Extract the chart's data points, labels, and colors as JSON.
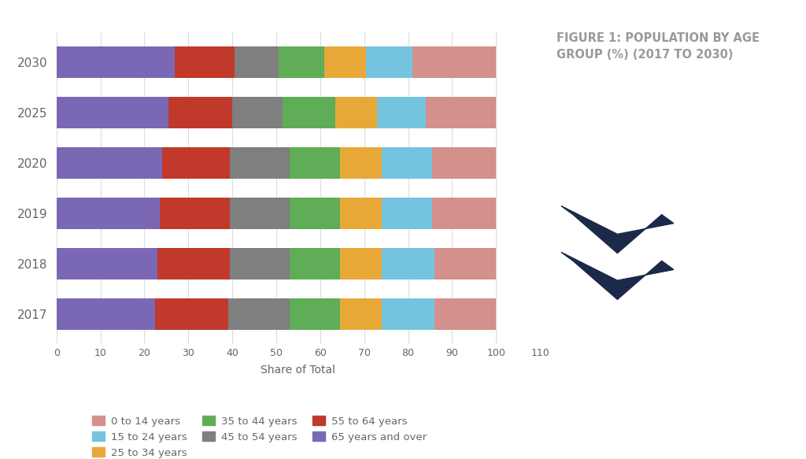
{
  "years": [
    "2030",
    "2025",
    "2020",
    "2019",
    "2018",
    "2017"
  ],
  "segments": [
    {
      "label": "65 years and over",
      "color": "#7B68B5",
      "values": [
        27.0,
        25.5,
        24.0,
        23.5,
        23.0,
        22.5
      ]
    },
    {
      "label": "55 to 64 years",
      "color": "#C0392B",
      "values": [
        13.5,
        14.5,
        15.5,
        16.0,
        16.5,
        16.5
      ]
    },
    {
      "label": "45 to 54 years",
      "color": "#7F7F7F",
      "values": [
        10.0,
        11.5,
        13.5,
        13.5,
        13.5,
        14.0
      ]
    },
    {
      "label": "35 to 44 years",
      "color": "#5FAD56",
      "values": [
        10.5,
        12.0,
        11.5,
        11.5,
        11.5,
        11.5
      ]
    },
    {
      "label": "25 to 34 years",
      "color": "#E8A838",
      "values": [
        9.5,
        9.5,
        9.5,
        9.5,
        9.5,
        9.5
      ]
    },
    {
      "label": "15 to 24 years",
      "color": "#74C4E0",
      "values": [
        10.5,
        11.0,
        11.5,
        11.5,
        12.0,
        12.0
      ]
    },
    {
      "label": "0 to 14 years",
      "color": "#D4908A",
      "values": [
        19.0,
        16.0,
        14.5,
        14.5,
        14.0,
        14.0
      ]
    }
  ],
  "xlabel": "Share of Total",
  "xlim": [
    0,
    110
  ],
  "xticks": [
    0,
    10,
    20,
    30,
    40,
    50,
    60,
    70,
    80,
    90,
    100,
    110
  ],
  "title": "FIGURE 1: POPULATION BY AGE\nGROUP (%) (2017 TO 2030)",
  "title_color": "#999999",
  "title_fontsize": 10.5,
  "background_color": "#FFFFFF",
  "bar_height": 0.62,
  "grid_color": "#DCDCDC",
  "axis_label_color": "#666666",
  "tick_label_color": "#666666",
  "chevron_color": "#1B2A4A",
  "legend_order": [
    "0 to 14 years",
    "15 to 24 years",
    "25 to 34 years",
    "35 to 44 years",
    "45 to 54 years",
    "55 to 64 years",
    "65 years and over"
  ]
}
